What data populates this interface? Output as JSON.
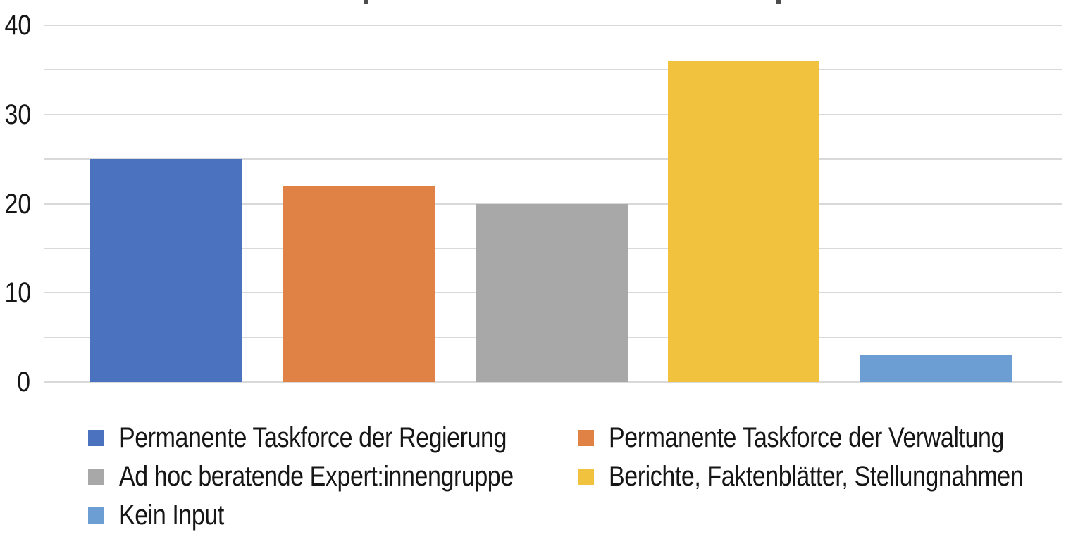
{
  "chart_data": {
    "type": "bar",
    "categories": [
      "Permanente Taskforce der Regierung",
      "Permanente Taskforce der Verwaltung",
      "Ad hoc beratende Expert:innengruppe",
      "Berichte, Faktenblätter, Stellungnahmen",
      "Kein Input"
    ],
    "values": [
      25,
      22,
      20,
      36,
      3
    ],
    "colors": [
      "#4a72be",
      "#e08145",
      "#a8a8a8",
      "#f0c23e",
      "#6d9ed3"
    ],
    "title": "",
    "xlabel": "",
    "ylabel": "",
    "ylim": [
      0,
      40
    ],
    "yticks": [
      "0",
      "10",
      "20",
      "30",
      "40"
    ],
    "ytick_values": [
      0,
      10,
      20,
      30,
      40
    ],
    "gridline_interval": 5,
    "grid": true,
    "gridline_color": "#d9d9d9",
    "legend_position": "bottom",
    "legend_columns": 2
  },
  "legend": {
    "items": [
      {
        "label": "Permanente Taskforce der Regierung",
        "color": "#4a72be"
      },
      {
        "label": "Permanente Taskforce der Verwaltung",
        "color": "#e08145"
      },
      {
        "label": "Ad hoc beratende Expert:innengruppe",
        "color": "#a8a8a8"
      },
      {
        "label": "Berichte, Faktenblätter, Stellungnahmen",
        "color": "#f0c23e"
      },
      {
        "label": "Kein Input",
        "color": "#6d9ed3"
      }
    ]
  }
}
